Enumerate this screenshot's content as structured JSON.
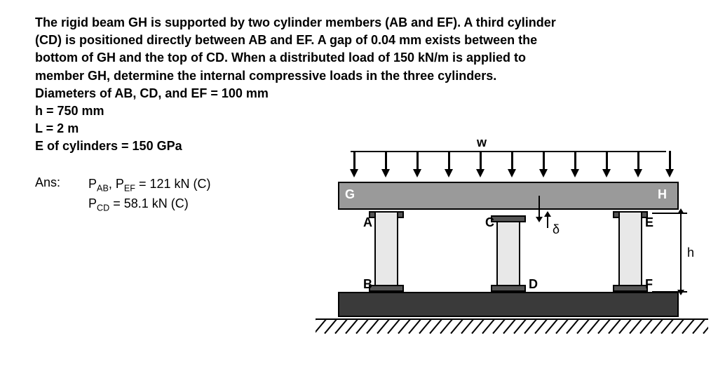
{
  "problem": {
    "line1": "The rigid beam GH is supported by two cylinder members (AB and EF).  A third cylinder",
    "line2": "(CD) is positioned directly between AB and EF.  A gap of 0.04 mm exists between the",
    "line3": "bottom of GH and the top of CD.  When a distributed load of 150 kN/m is applied to",
    "line4": "member GH, determine the internal compressive loads in the three cylinders.",
    "line5": "Diameters of AB, CD, and EF = 100 mm",
    "line6": "h = 750 mm",
    "line7": "L = 2 m",
    "line8": "E of cylinders = 150 GPa"
  },
  "answers": {
    "label": "Ans:",
    "p_ab_ef_pre": "P",
    "p_ab_sub": "AB",
    "comma": ", P",
    "p_ef_sub": "EF",
    "p_ab_ef_val": " = 121 kN (C)",
    "p_cd_pre": "P",
    "p_cd_sub": "CD",
    "p_cd_val": " = 58.1 kN (C)"
  },
  "diagram": {
    "w": "w",
    "G": "G",
    "H": "H",
    "A": "A",
    "B": "B",
    "C": "C",
    "D": "D",
    "E": "E",
    "F": "F",
    "delta": "δ",
    "h": "h",
    "num_arrows": 11,
    "num_hatch": 40,
    "colors": {
      "beam": "#9a9a9a",
      "cylinder": "#e8e8e8",
      "cap": "#555555",
      "base": "#3a3a3a",
      "bg": "#ffffff"
    }
  }
}
